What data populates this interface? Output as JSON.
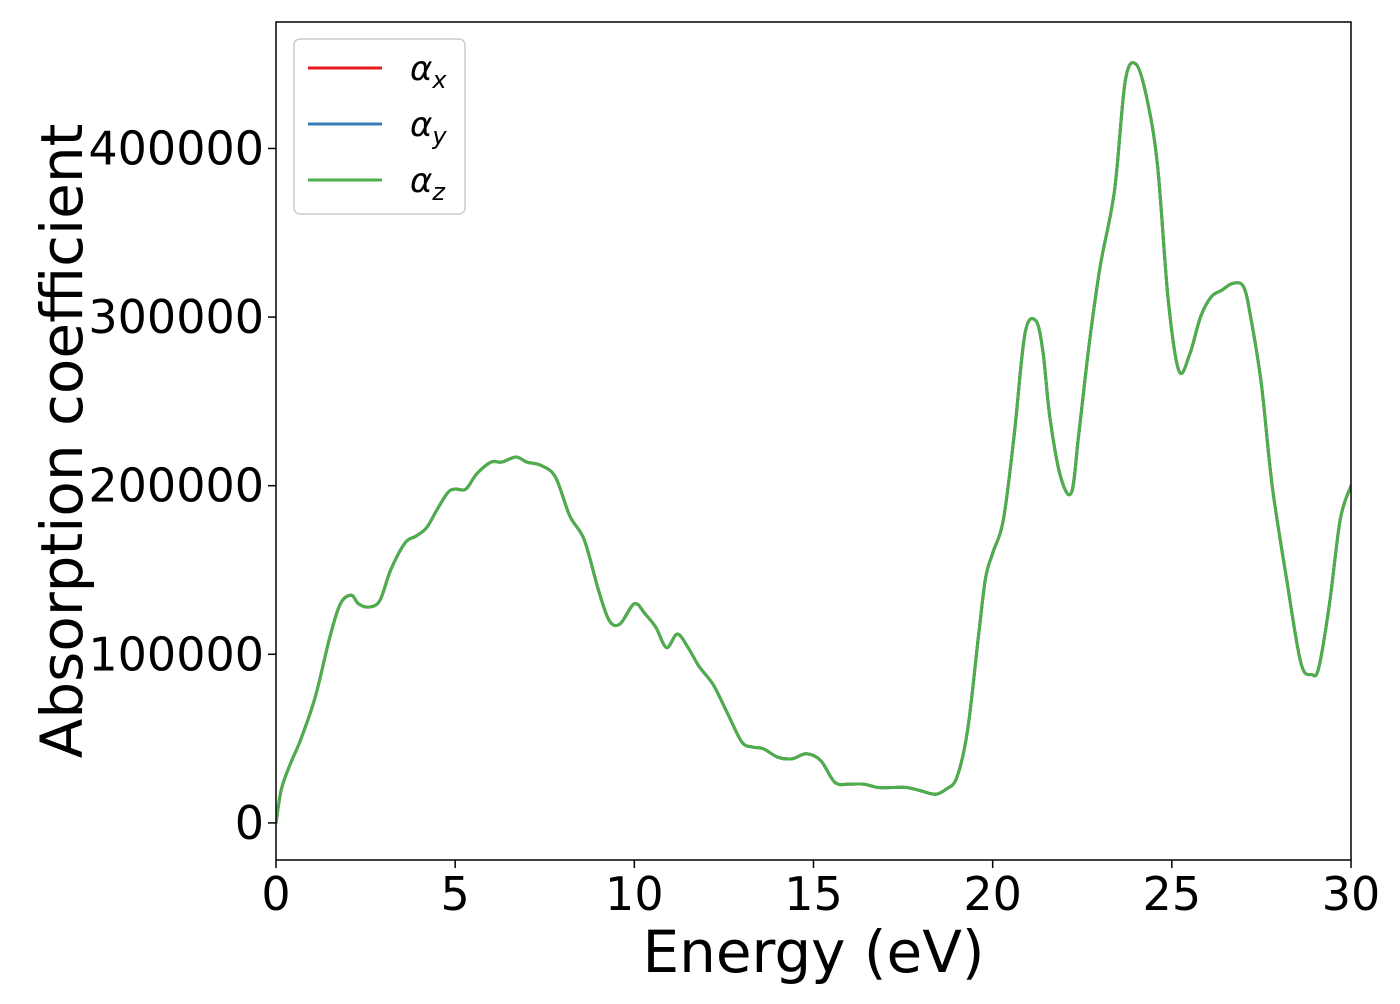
{
  "chart_data": {
    "type": "line",
    "xlabel": "Energy (eV)",
    "ylabel": "Absorption coefficient",
    "xlim": [
      0,
      30
    ],
    "ylim": [
      -22000,
      475000
    ],
    "xticks": [
      0,
      5,
      10,
      15,
      20,
      25,
      30
    ],
    "xtick_labels": [
      "0",
      "5",
      "10",
      "15",
      "20",
      "25",
      "30"
    ],
    "yticks": [
      0,
      100000,
      200000,
      300000,
      400000
    ],
    "ytick_labels": [
      "0",
      "100000",
      "200000",
      "300000",
      "400000"
    ],
    "grid": false,
    "legend_position": "upper-left",
    "series": [
      {
        "name": "α_x",
        "label_main": "α",
        "label_sub": "x",
        "color": "#e41a1c",
        "x": [
          0,
          0.15,
          0.4,
          0.7,
          1.1,
          1.5,
          1.8,
          2.1,
          2.3,
          2.6,
          2.9,
          3.2,
          3.6,
          3.9,
          4.2,
          4.5,
          4.8,
          5.0,
          5.3,
          5.6,
          6.0,
          6.3,
          6.7,
          7.0,
          7.4,
          7.8,
          8.2,
          8.6,
          9.0,
          9.3,
          9.6,
          10.0,
          10.3,
          10.6,
          10.9,
          11.2,
          11.5,
          11.8,
          12.2,
          12.6,
          13.0,
          13.3,
          13.6,
          14.0,
          14.4,
          14.8,
          15.2,
          15.6,
          16.0,
          16.4,
          16.8,
          17.2,
          17.6,
          18.0,
          18.4,
          18.7,
          19.0,
          19.3,
          19.6,
          19.8,
          20.0,
          20.3,
          20.6,
          20.9,
          21.2,
          21.4,
          21.6,
          21.9,
          22.2,
          22.4,
          22.7,
          23.0,
          23.4,
          23.7,
          24.0,
          24.3,
          24.6,
          24.9,
          25.2,
          25.5,
          25.8,
          26.1,
          26.4,
          26.7,
          27.0,
          27.2,
          27.5,
          27.8,
          28.2,
          28.6,
          28.9,
          29.1,
          29.4,
          29.7,
          30.0
        ],
        "values": [
          0,
          20000,
          35000,
          50000,
          75000,
          110000,
          130000,
          135000,
          130000,
          128000,
          132000,
          150000,
          166000,
          170000,
          175000,
          186000,
          196000,
          198000,
          198000,
          207000,
          214000,
          214000,
          217000,
          214000,
          212000,
          205000,
          182000,
          168000,
          138000,
          120000,
          118000,
          130000,
          124000,
          116000,
          104000,
          112000,
          104000,
          93000,
          82000,
          65000,
          48000,
          45000,
          44000,
          39000,
          38000,
          41000,
          37000,
          24000,
          23000,
          23000,
          21000,
          21000,
          21000,
          19000,
          17000,
          20000,
          27000,
          55000,
          110000,
          145000,
          160000,
          180000,
          230000,
          290000,
          298000,
          280000,
          240000,
          205000,
          196000,
          230000,
          285000,
          330000,
          375000,
          440000,
          450000,
          430000,
          390000,
          310000,
          268000,
          278000,
          300000,
          312000,
          316000,
          320000,
          318000,
          300000,
          260000,
          200000,
          145000,
          95000,
          88000,
          92000,
          130000,
          180000,
          200000
        ]
      },
      {
        "name": "α_y",
        "label_main": "α",
        "label_sub": "y",
        "color": "#377eb8",
        "x": [
          0,
          0.15,
          0.4,
          0.7,
          1.1,
          1.5,
          1.8,
          2.1,
          2.3,
          2.6,
          2.9,
          3.2,
          3.6,
          3.9,
          4.2,
          4.5,
          4.8,
          5.0,
          5.3,
          5.6,
          6.0,
          6.3,
          6.7,
          7.0,
          7.4,
          7.8,
          8.2,
          8.6,
          9.0,
          9.3,
          9.6,
          10.0,
          10.3,
          10.6,
          10.9,
          11.2,
          11.5,
          11.8,
          12.2,
          12.6,
          13.0,
          13.3,
          13.6,
          14.0,
          14.4,
          14.8,
          15.2,
          15.6,
          16.0,
          16.4,
          16.8,
          17.2,
          17.6,
          18.0,
          18.4,
          18.7,
          19.0,
          19.3,
          19.6,
          19.8,
          20.0,
          20.3,
          20.6,
          20.9,
          21.2,
          21.4,
          21.6,
          21.9,
          22.2,
          22.4,
          22.7,
          23.0,
          23.4,
          23.7,
          24.0,
          24.3,
          24.6,
          24.9,
          25.2,
          25.5,
          25.8,
          26.1,
          26.4,
          26.7,
          27.0,
          27.2,
          27.5,
          27.8,
          28.2,
          28.6,
          28.9,
          29.1,
          29.4,
          29.7,
          30.0
        ],
        "values": [
          0,
          20000,
          35000,
          50000,
          75000,
          110000,
          130000,
          135000,
          130000,
          128000,
          132000,
          150000,
          166000,
          170000,
          175000,
          186000,
          196000,
          198000,
          198000,
          207000,
          214000,
          214000,
          217000,
          214000,
          212000,
          205000,
          182000,
          168000,
          138000,
          120000,
          118000,
          130000,
          124000,
          116000,
          104000,
          112000,
          104000,
          93000,
          82000,
          65000,
          48000,
          45000,
          44000,
          39000,
          38000,
          41000,
          37000,
          24000,
          23000,
          23000,
          21000,
          21000,
          21000,
          19000,
          17000,
          20000,
          27000,
          55000,
          110000,
          145000,
          160000,
          180000,
          230000,
          290000,
          298000,
          280000,
          240000,
          205000,
          196000,
          230000,
          285000,
          330000,
          375000,
          440000,
          450000,
          430000,
          390000,
          310000,
          268000,
          278000,
          300000,
          312000,
          316000,
          320000,
          318000,
          300000,
          260000,
          200000,
          145000,
          95000,
          88000,
          92000,
          130000,
          180000,
          200000
        ]
      },
      {
        "name": "α_z",
        "label_main": "α",
        "label_sub": "z",
        "color": "#4daf4a",
        "x": [
          0,
          0.15,
          0.4,
          0.7,
          1.1,
          1.5,
          1.8,
          2.1,
          2.3,
          2.6,
          2.9,
          3.2,
          3.6,
          3.9,
          4.2,
          4.5,
          4.8,
          5.0,
          5.3,
          5.6,
          6.0,
          6.3,
          6.7,
          7.0,
          7.4,
          7.8,
          8.2,
          8.6,
          9.0,
          9.3,
          9.6,
          10.0,
          10.3,
          10.6,
          10.9,
          11.2,
          11.5,
          11.8,
          12.2,
          12.6,
          13.0,
          13.3,
          13.6,
          14.0,
          14.4,
          14.8,
          15.2,
          15.6,
          16.0,
          16.4,
          16.8,
          17.2,
          17.6,
          18.0,
          18.4,
          18.7,
          19.0,
          19.3,
          19.6,
          19.8,
          20.0,
          20.3,
          20.6,
          20.9,
          21.2,
          21.4,
          21.6,
          21.9,
          22.2,
          22.4,
          22.7,
          23.0,
          23.4,
          23.7,
          24.0,
          24.3,
          24.6,
          24.9,
          25.2,
          25.5,
          25.8,
          26.1,
          26.4,
          26.7,
          27.0,
          27.2,
          27.5,
          27.8,
          28.2,
          28.6,
          28.9,
          29.1,
          29.4,
          29.7,
          30.0
        ],
        "values": [
          0,
          20000,
          35000,
          50000,
          75000,
          110000,
          130000,
          135000,
          130000,
          128000,
          132000,
          150000,
          166000,
          170000,
          175000,
          186000,
          196000,
          198000,
          198000,
          207000,
          214000,
          214000,
          217000,
          214000,
          212000,
          205000,
          182000,
          168000,
          138000,
          120000,
          118000,
          130000,
          124000,
          116000,
          104000,
          112000,
          104000,
          93000,
          82000,
          65000,
          48000,
          45000,
          44000,
          39000,
          38000,
          41000,
          37000,
          24000,
          23000,
          23000,
          21000,
          21000,
          21000,
          19000,
          17000,
          20000,
          27000,
          55000,
          110000,
          145000,
          160000,
          180000,
          230000,
          290000,
          298000,
          280000,
          240000,
          205000,
          196000,
          230000,
          285000,
          330000,
          375000,
          440000,
          450000,
          430000,
          390000,
          310000,
          268000,
          278000,
          300000,
          312000,
          316000,
          320000,
          318000,
          300000,
          260000,
          200000,
          145000,
          95000,
          88000,
          92000,
          130000,
          180000,
          200000
        ]
      }
    ]
  }
}
